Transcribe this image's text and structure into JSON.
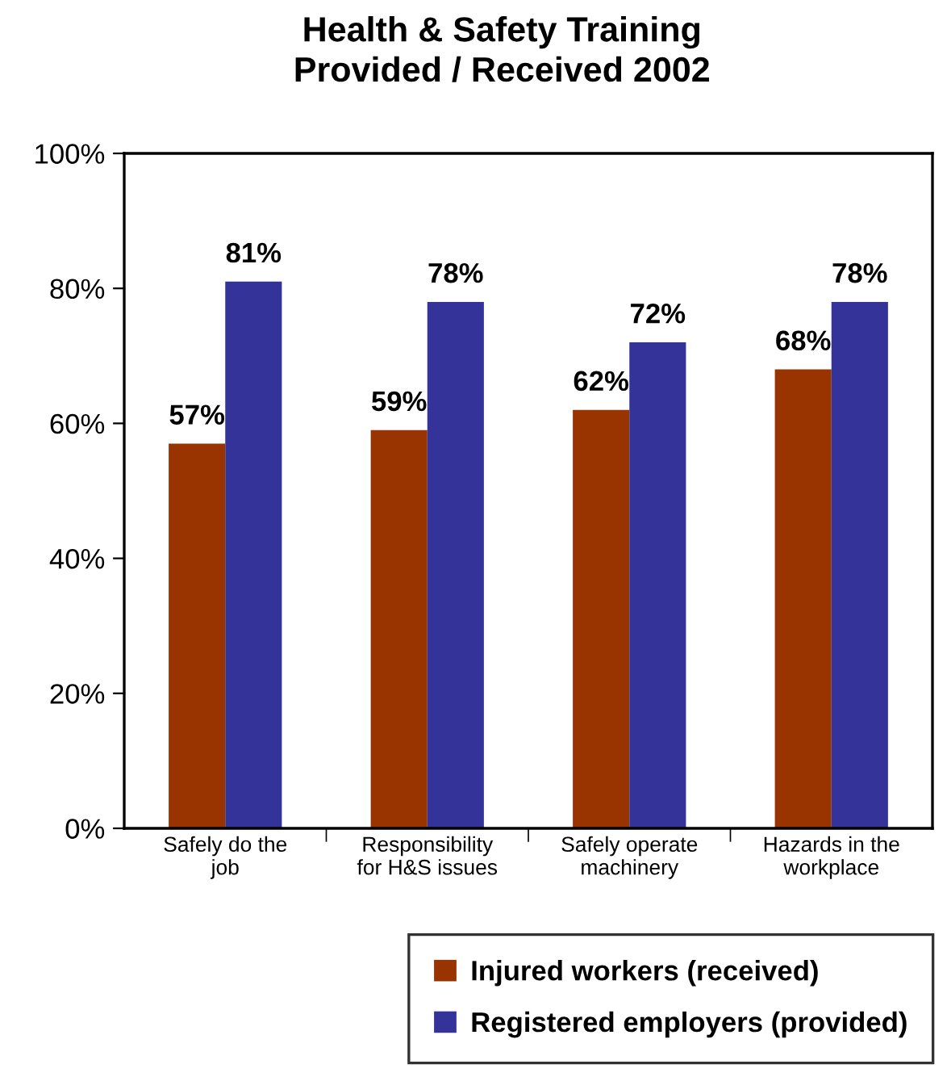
{
  "chart_data": {
    "type": "bar",
    "title": "Health & Safety Training\nProvided / Received 2002",
    "categories": [
      "Safely do the\njob",
      "Responsibility\nfor H&S issues",
      "Safely operate\nmachinery",
      "Hazards in the\nworkplace"
    ],
    "series": [
      {
        "name": "Injured workers (received)",
        "color": "#993300",
        "values": [
          57,
          59,
          62,
          68
        ],
        "value_labels": [
          "57%",
          "59%",
          "62%",
          "68%"
        ]
      },
      {
        "name": "Registered employers (provided)",
        "color": "#333399",
        "values": [
          81,
          78,
          72,
          78
        ],
        "value_labels": [
          "81%",
          "78%",
          "72%",
          "78%"
        ]
      }
    ],
    "ylim": [
      0,
      100
    ],
    "yticks": [
      {
        "value": 0,
        "label": "0%"
      },
      {
        "value": 20,
        "label": "20%"
      },
      {
        "value": 40,
        "label": "40%"
      },
      {
        "value": 60,
        "label": "60%"
      },
      {
        "value": 80,
        "label": "80%"
      },
      {
        "value": 100,
        "label": "100%"
      }
    ],
    "grid": false,
    "legend": "bottom"
  }
}
